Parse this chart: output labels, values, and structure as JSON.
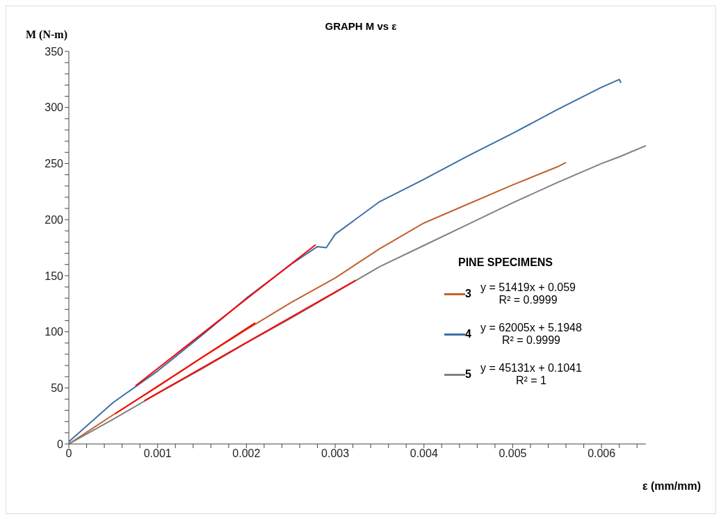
{
  "chart_data": {
    "type": "line",
    "title": "GRAPH M  vs ε",
    "xlabel": "ε (mm/mm)",
    "ylabel": "M (N-m)",
    "legend_title": "PINE SPECIMENS",
    "legend": "right",
    "x": [
      0,
      0.0005,
      0.001,
      0.0015,
      0.002,
      0.0025,
      0.003,
      0.0035,
      0.004,
      0.0045,
      0.005,
      0.0055,
      0.006,
      0.0062,
      0.0065
    ],
    "series": [
      {
        "name": "3",
        "color": "#c0622b",
        "x": [
          0,
          0.0005,
          0.001,
          0.0015,
          0.002,
          0.0025,
          0.003,
          0.0035,
          0.004,
          0.0045,
          0.005,
          0.0055,
          0.0056
        ],
        "values": [
          0,
          26,
          51,
          77,
          102,
          126,
          148,
          174,
          197,
          214,
          231,
          247,
          251
        ]
      },
      {
        "name": "4",
        "color": "#3a6fa5",
        "x": [
          0,
          0.0005,
          0.001,
          0.0015,
          0.002,
          0.0025,
          0.0028,
          0.0029,
          0.003,
          0.0035,
          0.004,
          0.0045,
          0.005,
          0.0055,
          0.006,
          0.0062,
          0.00622
        ],
        "values": [
          2,
          37,
          65,
          97,
          130,
          160,
          176,
          175,
          187,
          216,
          236,
          257,
          277,
          298,
          318,
          325,
          322
        ]
      },
      {
        "name": "5",
        "color": "#808080",
        "values": [
          0,
          22,
          45,
          67,
          90,
          112,
          135,
          158,
          177,
          196,
          215,
          233,
          250,
          256,
          266
        ]
      },
      {
        "type": "line",
        "color": "#ff0000",
        "x": [
          0.00052,
          0.0021
        ],
        "values": [
          26.8,
          108.0
        ]
      },
      {
        "type": "line",
        "color": "#ff0000",
        "x": [
          0.00075,
          0.00278
        ],
        "values": [
          51.7,
          177.6
        ]
      },
      {
        "type": "line",
        "color": "#ff0000",
        "x": [
          0.00085,
          0.00323
        ],
        "values": [
          38.5,
          145.9
        ]
      }
    ],
    "annotations": [
      "y = 51419x + 0.059\nR² = 0.9999",
      "y = 62005x + 5.1948\nR² = 0.9999",
      "y = 45131x + 0.1041\nR² = 1"
    ],
    "xlim": [
      0,
      0.0065
    ],
    "ylim": [
      0,
      350
    ],
    "xticks": [
      0,
      {
        "value": 0.0002,
        "label": null
      },
      {
        "value": 0.0004,
        "label": null
      },
      {
        "value": 0.0006,
        "label": null
      },
      {
        "value": 0.0008,
        "label": null
      },
      0.001,
      {
        "value": 0.0012,
        "label": null
      },
      {
        "value": 0.0014,
        "label": null
      },
      {
        "value": 0.0016,
        "label": null
      },
      {
        "value": 0.0018,
        "label": null
      },
      0.002,
      {
        "value": 0.0022,
        "label": null
      },
      {
        "value": 0.0024,
        "label": null
      },
      {
        "value": 0.0026,
        "label": null
      },
      {
        "value": 0.0028,
        "label": null
      },
      0.003,
      {
        "value": 0.0032,
        "label": null
      },
      {
        "value": 0.0034,
        "label": null
      },
      {
        "value": 0.0036,
        "label": null
      },
      {
        "value": 0.0038,
        "label": null
      },
      0.004,
      {
        "value": 0.0042,
        "label": null
      },
      {
        "value": 0.0044,
        "label": null
      },
      {
        "value": 0.0046,
        "label": null
      },
      {
        "value": 0.0048,
        "label": null
      },
      0.005,
      {
        "value": 0.0052,
        "label": null
      },
      {
        "value": 0.0054,
        "label": null
      },
      {
        "value": 0.0056,
        "label": null
      },
      {
        "value": 0.0058,
        "label": null
      },
      0.006,
      {
        "value": 0.0062,
        "label": null
      },
      {
        "value": 0.0064,
        "label": null
      }
    ],
    "yticks": [
      0,
      {
        "value": 10,
        "label": null
      },
      {
        "value": 20,
        "label": null
      },
      {
        "value": 30,
        "label": null
      },
      {
        "value": 40,
        "label": null
      },
      50,
      {
        "value": 60,
        "label": null
      },
      {
        "value": 70,
        "label": null
      },
      {
        "value": 80,
        "label": null
      },
      {
        "value": 90,
        "label": null
      },
      100,
      {
        "value": 110,
        "label": null
      },
      {
        "value": 120,
        "label": null
      },
      {
        "value": 130,
        "label": null
      },
      {
        "value": 140,
        "label": null
      },
      150,
      {
        "value": 160,
        "label": null
      },
      {
        "value": 170,
        "label": null
      },
      {
        "value": 180,
        "label": null
      },
      {
        "value": 190,
        "label": null
      },
      200,
      {
        "value": 210,
        "label": null
      },
      {
        "value": 220,
        "label": null
      },
      {
        "value": 230,
        "label": null
      },
      {
        "value": 240,
        "label": null
      },
      250,
      {
        "value": 260,
        "label": null
      },
      {
        "value": 270,
        "label": null
      },
      {
        "value": 280,
        "label": null
      },
      {
        "value": 290,
        "label": null
      },
      300,
      {
        "value": 310,
        "label": null
      },
      {
        "value": 320,
        "label": null
      },
      {
        "value": 330,
        "label": null
      },
      {
        "value": 340,
        "label": null
      },
      350
    ]
  }
}
